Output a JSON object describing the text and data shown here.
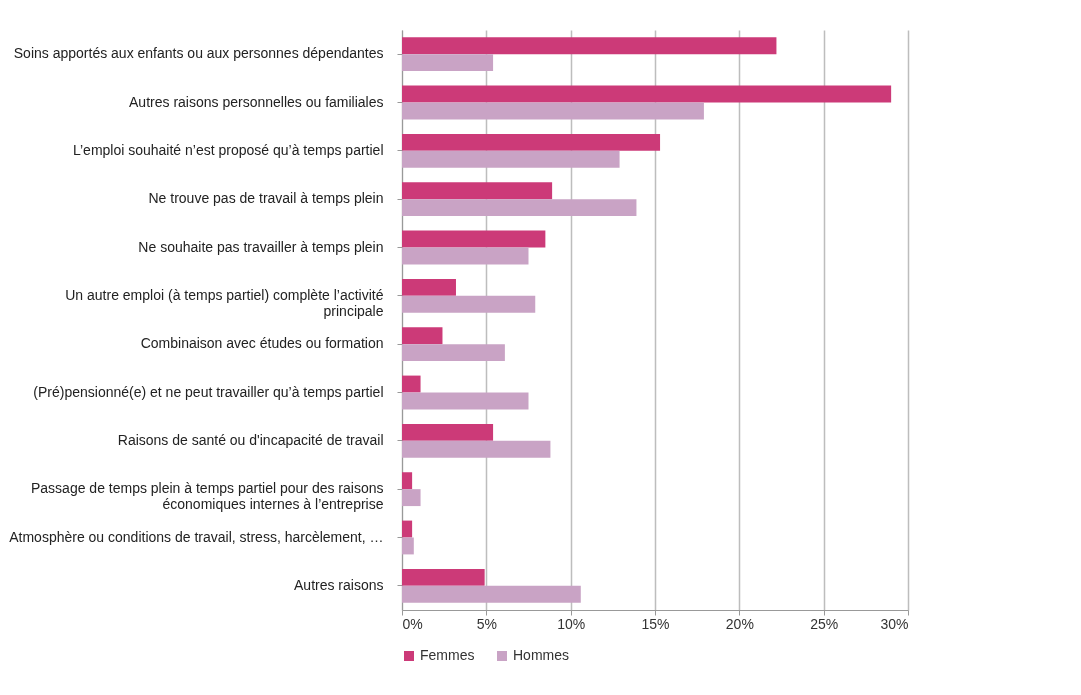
{
  "chart_data": {
    "type": "bar",
    "orientation": "horizontal",
    "categories": [
      "Soins apportés aux enfants ou aux personnes dépendantes",
      "Autres raisons personnelles ou familiales",
      "L’emploi souhaité n’est proposé qu’à temps partiel",
      "Ne trouve pas de travail à temps plein",
      "Ne souhaite pas travailler à temps plein",
      "Un autre emploi (à temps partiel) complète l’activité principale",
      "Combinaison avec études ou formation",
      "(Pré)pensionné(e) et ne peut travailler qu’à temps partiel",
      "Raisons de santé ou d'incapacité de travail",
      "Passage de temps plein à temps partiel pour des raisons économiques internes à l’entreprise",
      "Atmosphère ou conditions de travail, stress, harcèlement, …",
      "Autres raisons"
    ],
    "series": [
      {
        "name": "Femmes",
        "color": "#cc3a78",
        "values": [
          22.2,
          29.0,
          15.3,
          8.9,
          8.5,
          3.2,
          2.4,
          1.1,
          5.4,
          0.6,
          0.6,
          4.9
        ]
      },
      {
        "name": "Hommes",
        "color": "#c9a3c5",
        "values": [
          5.4,
          17.9,
          12.9,
          13.9,
          7.5,
          7.9,
          6.1,
          7.5,
          8.8,
          1.1,
          0.7,
          10.6
        ]
      }
    ],
    "xlim": [
      0,
      30
    ],
    "xticks": [
      {
        "value": 0,
        "label": "0%"
      },
      {
        "value": 5,
        "label": "5%"
      },
      {
        "value": 10,
        "label": "10%"
      },
      {
        "value": 15,
        "label": "15%"
      },
      {
        "value": 20,
        "label": "20%"
      },
      {
        "value": 25,
        "label": "25%"
      },
      {
        "value": 30,
        "label": "30%"
      }
    ],
    "grid": "x",
    "legend": "bottom"
  }
}
